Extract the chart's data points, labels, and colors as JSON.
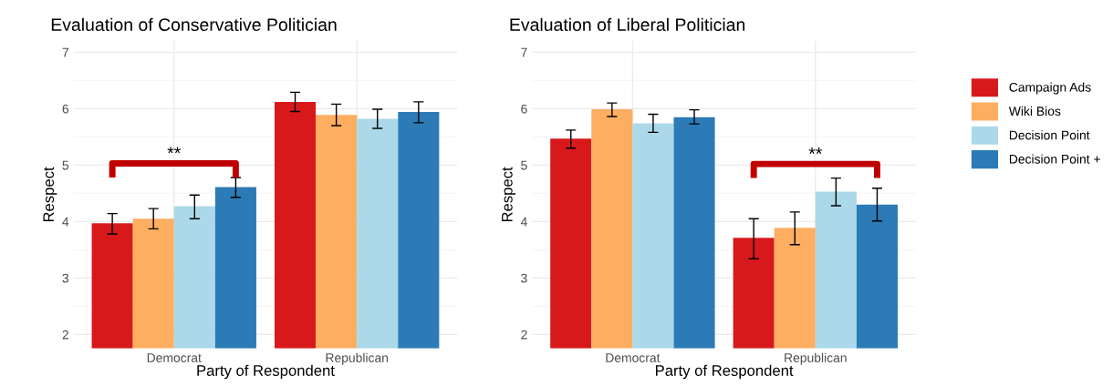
{
  "chart_data": [
    {
      "type": "bar",
      "title": "Evaluation of Conservative Politician",
      "xlabel": "Party of Respondent",
      "ylabel": "Respect",
      "categories": [
        "Democrat",
        "Republican"
      ],
      "ylim": [
        1.75,
        7.2
      ],
      "yticks": [
        2,
        3,
        4,
        5,
        6,
        7
      ],
      "grid": true,
      "legend": "right",
      "series": [
        {
          "name": "Campaign Ads",
          "color": "#d7191c",
          "values": [
            3.97,
            6.12
          ],
          "errors": [
            [
              3.78,
              4.14
            ],
            [
              5.95,
              6.29
            ]
          ]
        },
        {
          "name": "Wiki Bios",
          "color": "#fdae61",
          "values": [
            4.05,
            5.89
          ],
          "errors": [
            [
              3.87,
              4.23
            ],
            [
              5.7,
              6.08
            ]
          ]
        },
        {
          "name": "Decision Point",
          "color": "#abd9e9",
          "values": [
            4.27,
            5.82
          ],
          "errors": [
            [
              4.05,
              4.47
            ],
            [
              5.65,
              5.99
            ]
          ]
        },
        {
          "name": "Decision Point +",
          "color": "#2c7bb6",
          "values": [
            4.61,
            5.94
          ],
          "errors": [
            [
              4.43,
              4.78
            ],
            [
              5.75,
              6.12
            ]
          ]
        }
      ],
      "annotations": [
        "**"
      ]
    },
    {
      "type": "bar",
      "title": "Evaluation of Liberal Politician",
      "xlabel": "Party of Respondent",
      "ylabel": "Respect",
      "categories": [
        "Democrat",
        "Republican"
      ],
      "ylim": [
        1.75,
        7.2
      ],
      "yticks": [
        2,
        3,
        4,
        5,
        6,
        7
      ],
      "grid": true,
      "series": [
        {
          "color": "#d7191c",
          "values": [
            5.47,
            3.71
          ],
          "errors": [
            [
              5.3,
              5.62
            ],
            [
              3.34,
              4.05
            ]
          ]
        },
        {
          "color": "#fdae61",
          "values": [
            5.99,
            3.89
          ],
          "errors": [
            [
              5.86,
              6.1
            ],
            [
              3.59,
              4.17
            ]
          ]
        },
        {
          "color": "#abd9e9",
          "values": [
            5.74,
            4.53
          ],
          "errors": [
            [
              5.58,
              5.9
            ],
            [
              4.28,
              4.77
            ]
          ]
        },
        {
          "color": "#2c7bb6",
          "values": [
            5.85,
            4.3
          ],
          "errors": [
            [
              5.73,
              5.98
            ],
            [
              4.01,
              4.59
            ]
          ]
        }
      ],
      "annotations": [
        "**"
      ]
    }
  ]
}
